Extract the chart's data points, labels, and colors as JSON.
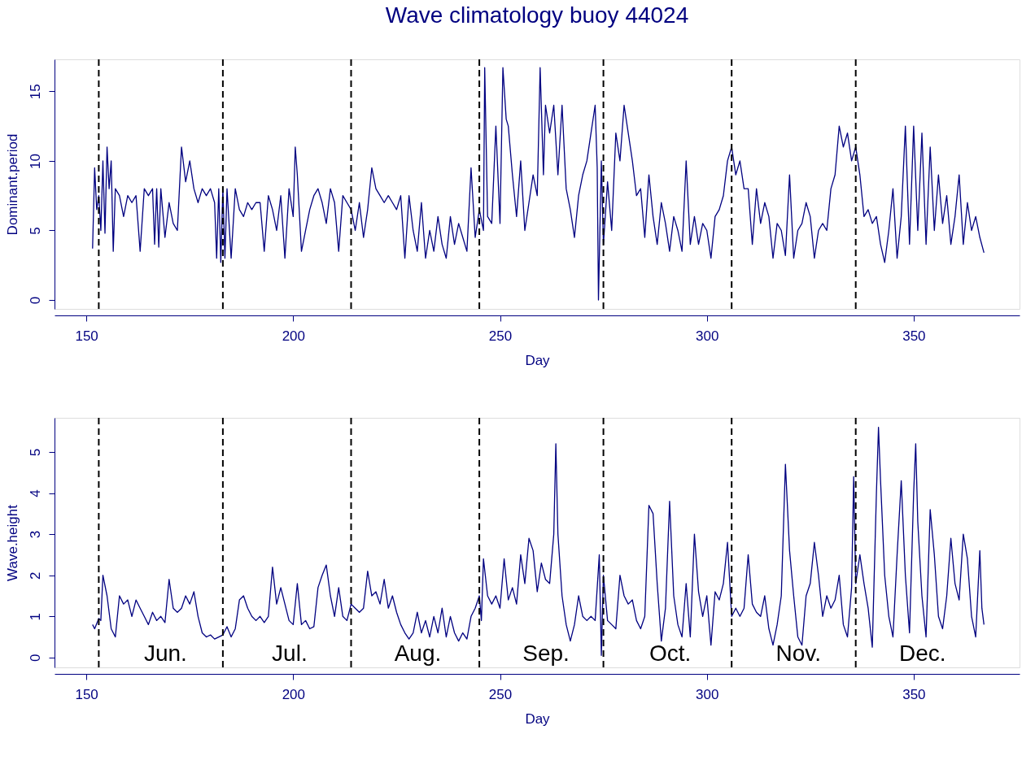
{
  "chart_data": [
    {
      "type": "line",
      "title": "Wave climatology  buoy 44024",
      "xlabel": "Day",
      "ylabel": "Dominant.period",
      "xlim": [
        142.3,
        375.6
      ],
      "xticks": [
        150,
        200,
        250,
        300,
        350
      ],
      "ylim": [
        -0.64,
        17.3
      ],
      "yticks": [
        0,
        5,
        10,
        15
      ],
      "grid": false,
      "marker": "none",
      "line_style": "solid",
      "series": [
        {
          "color": "#000080",
          "x": [
            151.5,
            152,
            152.5,
            153,
            153.5,
            154,
            154.5,
            155,
            155.5,
            156,
            156.5,
            157,
            158,
            159,
            160,
            161,
            162,
            163,
            164,
            165,
            166,
            166.5,
            167,
            167.5,
            168,
            169,
            170,
            171,
            172,
            173,
            174,
            175,
            176,
            177,
            178,
            179,
            180,
            181,
            181.5,
            182,
            182.5,
            183,
            183.5,
            184,
            185,
            186,
            187,
            188,
            189,
            190,
            191,
            192,
            193,
            194,
            195,
            196,
            197,
            198,
            199,
            200,
            200.5,
            201,
            202,
            203,
            204,
            205,
            206,
            207,
            208,
            209,
            210,
            211,
            212,
            213,
            214,
            215,
            216,
            217,
            218,
            219,
            220,
            221,
            222,
            223,
            224,
            225,
            226,
            227,
            228,
            229,
            230,
            231,
            232,
            233,
            234,
            235,
            236,
            237,
            238,
            239,
            240,
            241,
            242,
            243,
            244,
            245,
            246,
            246.3,
            247,
            248,
            249,
            250,
            250.7,
            251.5,
            252,
            253,
            254,
            255,
            256,
            257,
            258,
            259,
            259.7,
            260.5,
            261,
            262,
            263,
            264,
            265,
            266,
            267,
            268,
            269,
            270,
            271,
            272,
            273,
            273.5,
            273.8,
            274.5,
            275,
            276,
            277,
            278,
            279,
            280,
            281,
            282,
            283,
            284,
            285,
            286,
            287,
            288,
            289,
            290,
            291,
            292,
            293,
            294,
            295,
            296,
            297,
            298,
            299,
            300,
            301,
            302,
            303,
            304,
            305,
            306,
            307,
            308,
            309,
            310,
            311,
            312,
            313,
            314,
            315,
            316,
            317,
            318,
            319,
            320,
            321,
            322,
            323,
            324,
            325,
            326,
            327,
            328,
            329,
            330,
            331,
            332,
            333,
            334,
            335,
            336,
            337,
            338,
            339,
            340,
            341,
            342,
            343,
            344,
            345,
            346,
            347,
            348,
            349,
            350,
            351,
            352,
            353,
            354,
            355,
            356,
            357,
            358,
            359,
            360,
            361,
            362,
            363,
            364,
            365,
            366,
            367
          ],
          "values": [
            3.7,
            9.5,
            6.5,
            7.5,
            5,
            10,
            4.8,
            11,
            8,
            10,
            3.5,
            8,
            7.5,
            6,
            7.5,
            7,
            7.5,
            3.5,
            8,
            7.5,
            8,
            4,
            8,
            3.8,
            8,
            4.5,
            7,
            5.5,
            5,
            11,
            8.5,
            10,
            8,
            7,
            8,
            7.5,
            8,
            7,
            3,
            8,
            2.7,
            8,
            3,
            8,
            3,
            8,
            6.5,
            6,
            7,
            6.5,
            7,
            7,
            3.5,
            7.5,
            6.5,
            5,
            7.5,
            3,
            8,
            6,
            11,
            9,
            3.5,
            5,
            6.5,
            7.5,
            8,
            7,
            5.5,
            8,
            7,
            3.5,
            7.5,
            7,
            6.5,
            5,
            7,
            4.5,
            6.5,
            9.5,
            8,
            7.5,
            7,
            7.5,
            7,
            6.5,
            7.5,
            3,
            7.5,
            5,
            3.5,
            7,
            3,
            5,
            3.5,
            6,
            4,
            3,
            6,
            4,
            5.5,
            4.5,
            3.5,
            9.5,
            4.5,
            6.5,
            5,
            16.7,
            6,
            5.5,
            12.5,
            5.5,
            16.7,
            13,
            12.5,
            9,
            6,
            10,
            5,
            7,
            9,
            7.5,
            16.7,
            9,
            14,
            12,
            14,
            9,
            14,
            8,
            6.5,
            4.5,
            7.5,
            9,
            10,
            12,
            14,
            9.5,
            0,
            10,
            4,
            8.5,
            5,
            12,
            10,
            14,
            12,
            10,
            7.5,
            8,
            4.5,
            9,
            6,
            4,
            7,
            5.5,
            3.5,
            6,
            5,
            3.5,
            10,
            4,
            6,
            4,
            5.5,
            5,
            3,
            6,
            6.5,
            7.5,
            10,
            11,
            9,
            10,
            8,
            8,
            4,
            8,
            5.5,
            7,
            6,
            3,
            5.5,
            5,
            3.2,
            9,
            3,
            5,
            5.5,
            7,
            6,
            3,
            5,
            5.5,
            5,
            8,
            9,
            12.5,
            11,
            12,
            10,
            11,
            9,
            6,
            6.5,
            5.5,
            6,
            4,
            2.7,
            5,
            8,
            3,
            6,
            12.5,
            4,
            12.5,
            5,
            12,
            4,
            11,
            5,
            9,
            5.5,
            7.5,
            4,
            6,
            9,
            4,
            7,
            5,
            6,
            4.5,
            3.4
          ]
        }
      ],
      "ref_lines": [
        {
          "axis": "x",
          "value": 153,
          "color": "#000000",
          "line_style": "dashed"
        },
        {
          "axis": "x",
          "value": 183,
          "color": "#000000",
          "line_style": "dashed"
        },
        {
          "axis": "x",
          "value": 214,
          "color": "#000000",
          "line_style": "dashed"
        },
        {
          "axis": "x",
          "value": 245,
          "color": "#000000",
          "line_style": "dashed"
        },
        {
          "axis": "x",
          "value": 275,
          "color": "#000000",
          "line_style": "dashed"
        },
        {
          "axis": "x",
          "value": 306,
          "color": "#000000",
          "line_style": "dashed"
        },
        {
          "axis": "x",
          "value": 336,
          "color": "#000000",
          "line_style": "dashed"
        }
      ]
    },
    {
      "type": "line",
      "xlabel": "Day",
      "ylabel": "Wave.height",
      "xlim": [
        142.3,
        375.6
      ],
      "xticks": [
        150,
        200,
        250,
        300,
        350
      ],
      "ylim": [
        -0.24,
        5.83
      ],
      "yticks": [
        0,
        1,
        2,
        3,
        4,
        5
      ],
      "grid": false,
      "marker": "none",
      "line_style": "solid",
      "series": [
        {
          "color": "#000080",
          "x": [
            151.5,
            152,
            153,
            153.5,
            154,
            155,
            156,
            157,
            158,
            159,
            160,
            161,
            162,
            163,
            164,
            165,
            166,
            167,
            168,
            169,
            170,
            171,
            172,
            173,
            174,
            175,
            176,
            177,
            178,
            179,
            180,
            181,
            182,
            183,
            184,
            185,
            186,
            187,
            188,
            189,
            190,
            191,
            192,
            193,
            194,
            195,
            196,
            197,
            198,
            199,
            200,
            201,
            202,
            203,
            204,
            205,
            206,
            207,
            208,
            209,
            210,
            211,
            212,
            213,
            214,
            215,
            216,
            217,
            218,
            219,
            220,
            221,
            222,
            223,
            224,
            225,
            226,
            227,
            228,
            229,
            230,
            231,
            232,
            233,
            234,
            235,
            236,
            237,
            238,
            239,
            240,
            241,
            242,
            243,
            244,
            245,
            245.5,
            246,
            247,
            248,
            249,
            250,
            251,
            252,
            253,
            254,
            255,
            256,
            257,
            258,
            259,
            260,
            261,
            262,
            263,
            263.5,
            264,
            265,
            266,
            267,
            268,
            269,
            270,
            271,
            272,
            273,
            274,
            274.5,
            275,
            276,
            277,
            278,
            279,
            280,
            281,
            282,
            283,
            284,
            285,
            286,
            287,
            288,
            289,
            290,
            291,
            292,
            293,
            294,
            295,
            296,
            297,
            298,
            299,
            300,
            301,
            302,
            303,
            304,
            305,
            306,
            307,
            308,
            309,
            310,
            311,
            312,
            313,
            314,
            315,
            316,
            317,
            318,
            319,
            320,
            321,
            322,
            323,
            324,
            325,
            326,
            327,
            328,
            329,
            330,
            331,
            332,
            333,
            334,
            335,
            335.5,
            336,
            337,
            338,
            339,
            340,
            341,
            341.5,
            342,
            343,
            344,
            345,
            346,
            347,
            348,
            349,
            350,
            350.5,
            351,
            352,
            353,
            354,
            355,
            356,
            357,
            358,
            359,
            360,
            361,
            362,
            363,
            364,
            365,
            366,
            366.5,
            367
          ],
          "values": [
            0.8,
            0.7,
            0.95,
            0.9,
            2.0,
            1.5,
            0.7,
            0.5,
            1.5,
            1.3,
            1.4,
            1.0,
            1.4,
            1.2,
            1.0,
            0.8,
            1.1,
            0.9,
            1.0,
            0.85,
            1.9,
            1.2,
            1.1,
            1.2,
            1.5,
            1.3,
            1.6,
            1.0,
            0.6,
            0.5,
            0.55,
            0.45,
            0.5,
            0.55,
            0.75,
            0.5,
            0.7,
            1.4,
            1.5,
            1.2,
            1.0,
            0.9,
            1.0,
            0.85,
            1.0,
            2.2,
            1.3,
            1.7,
            1.3,
            0.9,
            0.8,
            1.8,
            0.8,
            0.9,
            0.7,
            0.75,
            1.7,
            2.0,
            2.25,
            1.5,
            1.0,
            1.7,
            1.0,
            0.9,
            1.3,
            1.2,
            1.1,
            1.2,
            2.1,
            1.5,
            1.6,
            1.3,
            1.9,
            1.2,
            1.5,
            1.1,
            0.8,
            0.6,
            0.45,
            0.6,
            1.1,
            0.6,
            0.9,
            0.5,
            1.0,
            0.6,
            1.2,
            0.5,
            1.0,
            0.6,
            0.4,
            0.6,
            0.45,
            1.0,
            1.2,
            1.5,
            0.9,
            2.4,
            1.5,
            1.3,
            1.5,
            1.2,
            2.4,
            1.4,
            1.7,
            1.3,
            2.5,
            1.8,
            2.9,
            2.6,
            1.6,
            2.3,
            1.9,
            1.8,
            3.0,
            5.2,
            3.0,
            1.5,
            0.8,
            0.4,
            0.8,
            1.5,
            1.0,
            0.9,
            1.0,
            0.9,
            2.5,
            0.05,
            2.0,
            0.9,
            0.8,
            0.7,
            2.0,
            1.5,
            1.3,
            1.4,
            0.9,
            0.7,
            1.0,
            3.7,
            3.5,
            1.8,
            0.4,
            1.2,
            3.8,
            1.5,
            0.8,
            0.5,
            1.8,
            0.5,
            3.0,
            1.6,
            1.0,
            1.5,
            0.3,
            1.6,
            1.4,
            1.8,
            2.8,
            1.0,
            1.2,
            1.0,
            1.2,
            2.5,
            1.3,
            1.1,
            1.0,
            1.5,
            0.7,
            0.3,
            0.8,
            1.5,
            4.7,
            2.6,
            1.5,
            0.5,
            0.3,
            1.5,
            1.8,
            2.8,
            2.0,
            1.0,
            1.5,
            1.2,
            1.4,
            2.0,
            0.8,
            0.5,
            1.7,
            4.4,
            1.8,
            2.5,
            1.8,
            1.2,
            0.25,
            4.0,
            5.6,
            4.3,
            2.0,
            1.0,
            0.5,
            2.5,
            4.3,
            2.0,
            0.6,
            4.0,
            5.2,
            3.3,
            1.5,
            0.5,
            3.6,
            2.5,
            1.0,
            0.7,
            1.5,
            2.9,
            1.8,
            1.4,
            3.0,
            2.4,
            1.0,
            0.5,
            2.6,
            1.2,
            0.8
          ]
        }
      ],
      "ref_lines": [
        {
          "axis": "x",
          "value": 153,
          "label": "Jun.",
          "color": "#000000",
          "line_style": "dashed"
        },
        {
          "axis": "x",
          "value": 183,
          "label": "Jul.",
          "color": "#000000",
          "line_style": "dashed"
        },
        {
          "axis": "x",
          "value": 214,
          "label": "Aug.",
          "color": "#000000",
          "line_style": "dashed"
        },
        {
          "axis": "x",
          "value": 245,
          "label": "Sep.",
          "color": "#000000",
          "line_style": "dashed"
        },
        {
          "axis": "x",
          "value": 275,
          "label": "Oct.",
          "color": "#000000",
          "line_style": "dashed"
        },
        {
          "axis": "x",
          "value": 306,
          "label": "Nov.",
          "color": "#000000",
          "line_style": "dashed"
        },
        {
          "axis": "x",
          "value": 336,
          "label": "Dec.",
          "color": "#000000",
          "line_style": "dashed"
        }
      ]
    }
  ]
}
